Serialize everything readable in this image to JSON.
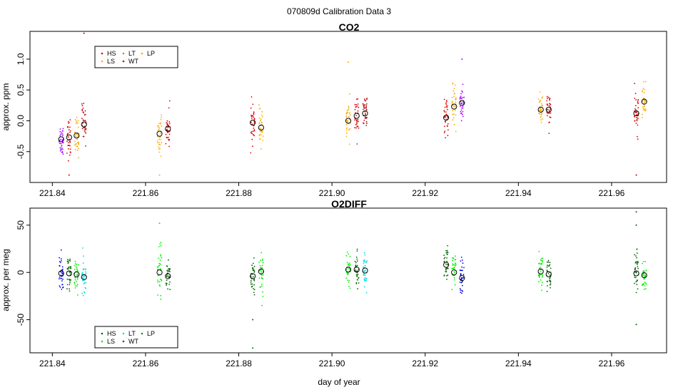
{
  "suptitle": "070809d   Calibration Data 3",
  "xlabel": "day of year",
  "colors": {
    "HS": "#dd0000",
    "LS": "#ffaa00",
    "LT": "#ee7700",
    "WT": "#bb0000",
    "LP": "#aa00ff",
    "O2_HS": "#0000dd",
    "O2_LS": "#00ee00",
    "O2_LT": "#00dddd",
    "O2_WT": "#006600",
    "O2_LP": "#228822"
  },
  "chart_data": [
    {
      "type": "scatter",
      "title": "CO2",
      "ylabel": "approx. ppm",
      "xlim": [
        221.8352,
        221.9718
      ],
      "ylim": [
        -1.0,
        1.45
      ],
      "xticks": [
        "221.84",
        "221.86",
        "221.88",
        "221.90",
        "221.92",
        "221.94",
        "221.96"
      ],
      "yticks": [
        "-0.5",
        "0.0",
        "0.5",
        "1.0"
      ],
      "legend": {
        "position": "top-left",
        "entries": [
          "HS",
          "LS",
          "LT",
          "WT",
          "LP"
        ]
      },
      "series": [
        {
          "name": "LP",
          "x": 221.8419,
          "mean": -0.3,
          "spread": 0.3,
          "color_key": "LP"
        },
        {
          "name": "HS",
          "x": 221.8436,
          "mean": -0.27,
          "spread": 0.35,
          "color_key": "HS"
        },
        {
          "name": "LS",
          "x": 221.8452,
          "mean": -0.24,
          "spread": 0.35,
          "color_key": "LS"
        },
        {
          "name": "WT",
          "x": 221.8468,
          "mean": -0.06,
          "spread": 0.35,
          "color_key": "WT"
        },
        {
          "name": "LS",
          "x": 221.863,
          "mean": -0.21,
          "spread": 0.35,
          "color_key": "LS"
        },
        {
          "name": "HS",
          "x": 221.8648,
          "mean": -0.13,
          "spread": 0.35,
          "color_key": "HS"
        },
        {
          "name": "HS",
          "x": 221.883,
          "mean": -0.03,
          "spread": 0.35,
          "color_key": "HS"
        },
        {
          "name": "LS",
          "x": 221.8848,
          "mean": -0.11,
          "spread": 0.3,
          "color_key": "LS"
        },
        {
          "name": "LS",
          "x": 221.9035,
          "mean": 0.0,
          "spread": 0.35,
          "color_key": "LS"
        },
        {
          "name": "HS",
          "x": 221.9053,
          "mean": 0.08,
          "spread": 0.35,
          "color_key": "HS"
        },
        {
          "name": "WT",
          "x": 221.9071,
          "mean": 0.12,
          "spread": 0.35,
          "color_key": "WT"
        },
        {
          "name": "HS",
          "x": 221.9245,
          "mean": 0.05,
          "spread": 0.3,
          "color_key": "HS"
        },
        {
          "name": "LS",
          "x": 221.9262,
          "mean": 0.23,
          "spread": 0.35,
          "color_key": "LS"
        },
        {
          "name": "LP",
          "x": 221.9279,
          "mean": 0.29,
          "spread": 0.35,
          "color_key": "LP"
        },
        {
          "name": "LS",
          "x": 221.9448,
          "mean": 0.18,
          "spread": 0.3,
          "color_key": "LS"
        },
        {
          "name": "HS",
          "x": 221.9465,
          "mean": 0.18,
          "spread": 0.3,
          "color_key": "HS"
        },
        {
          "name": "HS",
          "x": 221.9653,
          "mean": 0.12,
          "spread": 0.35,
          "color_key": "HS"
        },
        {
          "name": "LS",
          "x": 221.967,
          "mean": 0.31,
          "spread": 0.3,
          "color_key": "LS"
        }
      ],
      "outliers": [
        {
          "x": 221.8468,
          "y": 1.42,
          "color_key": "WT"
        },
        {
          "x": 221.9035,
          "y": 0.95,
          "color_key": "LS"
        },
        {
          "x": 221.9279,
          "y": 1.0,
          "color_key": "LP"
        },
        {
          "x": 221.9653,
          "y": -0.88,
          "color_key": "HS"
        },
        {
          "x": 221.8436,
          "y": -0.88,
          "color_key": "HS"
        },
        {
          "x": 221.863,
          "y": -0.88,
          "color_key": "LS"
        }
      ]
    },
    {
      "type": "scatter",
      "title": "O2DIFF",
      "ylabel": "approx. per meg",
      "xlim": [
        221.8352,
        221.9718
      ],
      "ylim": [
        -85,
        68
      ],
      "xticks": [
        "221.84",
        "221.86",
        "221.88",
        "221.90",
        "221.92",
        "221.94",
        "221.96"
      ],
      "yticks": [
        "-50",
        "0",
        "50"
      ],
      "legend": {
        "position": "bottom-left",
        "entries": [
          "HS",
          "LS",
          "LT",
          "WT",
          "LP"
        ]
      },
      "series": [
        {
          "name": "HS",
          "x": 221.8419,
          "mean": -1,
          "spread": 22,
          "color_key": "O2_HS"
        },
        {
          "name": "WT",
          "x": 221.8436,
          "mean": -1,
          "spread": 20,
          "color_key": "O2_WT"
        },
        {
          "name": "LS",
          "x": 221.8452,
          "mean": -2,
          "spread": 20,
          "color_key": "O2_LS"
        },
        {
          "name": "LT",
          "x": 221.8468,
          "mean": -5,
          "spread": 22,
          "color_key": "O2_LT"
        },
        {
          "name": "LS",
          "x": 221.863,
          "mean": 0,
          "spread": 30,
          "color_key": "O2_LS"
        },
        {
          "name": "WT",
          "x": 221.8648,
          "mean": -4,
          "spread": 15,
          "color_key": "O2_WT"
        },
        {
          "name": "WT",
          "x": 221.883,
          "mean": -4,
          "spread": 25,
          "color_key": "O2_WT"
        },
        {
          "name": "LS",
          "x": 221.8848,
          "mean": 1,
          "spread": 28,
          "color_key": "O2_LS"
        },
        {
          "name": "LS",
          "x": 221.9035,
          "mean": 3,
          "spread": 22,
          "color_key": "O2_LS"
        },
        {
          "name": "WT",
          "x": 221.9053,
          "mean": 3,
          "spread": 20,
          "color_key": "O2_WT"
        },
        {
          "name": "LT",
          "x": 221.9071,
          "mean": 2,
          "spread": 20,
          "color_key": "O2_LT"
        },
        {
          "name": "WT",
          "x": 221.9245,
          "mean": 8,
          "spread": 25,
          "color_key": "O2_WT"
        },
        {
          "name": "LS",
          "x": 221.9262,
          "mean": 0,
          "spread": 22,
          "color_key": "O2_LS"
        },
        {
          "name": "HS",
          "x": 221.9279,
          "mean": -6,
          "spread": 22,
          "color_key": "O2_HS"
        },
        {
          "name": "LS",
          "x": 221.9448,
          "mean": 1,
          "spread": 22,
          "color_key": "O2_LS"
        },
        {
          "name": "WT",
          "x": 221.9465,
          "mean": -2,
          "spread": 20,
          "color_key": "O2_WT"
        },
        {
          "name": "WT",
          "x": 221.9653,
          "mean": -1,
          "spread": 25,
          "color_key": "O2_WT"
        },
        {
          "name": "LS",
          "x": 221.967,
          "mean": -3,
          "spread": 20,
          "color_key": "O2_LS"
        }
      ],
      "outliers": [
        {
          "x": 221.883,
          "y": -80,
          "color_key": "O2_WT"
        },
        {
          "x": 221.883,
          "y": -50,
          "color_key": "O2_WT"
        },
        {
          "x": 221.863,
          "y": 52,
          "color_key": "O2_LS"
        },
        {
          "x": 221.9653,
          "y": 64,
          "color_key": "O2_WT"
        },
        {
          "x": 221.9653,
          "y": 50,
          "color_key": "O2_WT"
        },
        {
          "x": 221.9653,
          "y": -55,
          "color_key": "O2_WT"
        }
      ]
    }
  ]
}
